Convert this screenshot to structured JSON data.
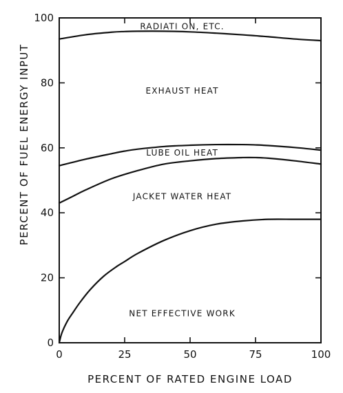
{
  "chart_data": {
    "type": "line",
    "title": "",
    "xlabel": "PERCENT OF RATED ENGINE LOAD",
    "ylabel": "PERCENT OF FUEL ENERGY INPUT",
    "xlim": [
      0,
      100
    ],
    "ylim": [
      0,
      100
    ],
    "xticks": [
      "0",
      "25",
      "50",
      "75",
      "100"
    ],
    "yticks": [
      "0",
      "20",
      "40",
      "60",
      "80",
      "100"
    ],
    "grid": false,
    "legend": "none",
    "series": [
      {
        "x": [
          0,
          1,
          3,
          5,
          8,
          12,
          17,
          22,
          25,
          30,
          40,
          50,
          60,
          70,
          80,
          90,
          100
        ],
        "y": [
          0,
          3,
          6.5,
          9,
          12.5,
          16.5,
          20.5,
          23.5,
          25,
          27.5,
          31.5,
          34.5,
          36.5,
          37.5,
          38,
          38,
          38
        ]
      },
      {
        "x": [
          0,
          5,
          10,
          20,
          30,
          40,
          50,
          60,
          70,
          75,
          80,
          90,
          100
        ],
        "y": [
          43,
          45,
          47,
          50.5,
          53,
          55,
          56,
          56.7,
          57,
          57,
          56.8,
          56,
          55
        ]
      },
      {
        "x": [
          0,
          10,
          20,
          25,
          30,
          40,
          50,
          60,
          70,
          75,
          80,
          90,
          100
        ],
        "y": [
          54.5,
          56.5,
          58.2,
          59,
          59.6,
          60.4,
          60.8,
          61,
          61,
          60.9,
          60.7,
          60.1,
          59.3
        ]
      },
      {
        "x": [
          0,
          10,
          20,
          25,
          30,
          40,
          50,
          60,
          70,
          75,
          80,
          90,
          100
        ],
        "y": [
          93.5,
          94.8,
          95.6,
          95.8,
          95.9,
          95.9,
          95.7,
          95.3,
          94.8,
          94.5,
          94.2,
          93.5,
          93
        ]
      }
    ],
    "region_labels": [
      {
        "text": "RADIATI ON, ETC.",
        "x": 47,
        "y": 97.3
      },
      {
        "text": "EXHAUST HEAT",
        "x": 47,
        "y": 77.5
      },
      {
        "text": "LUBE OIL HEAT",
        "x": 47,
        "y": 58.5
      },
      {
        "text": "JACKET WATER HEAT",
        "x": 47,
        "y": 45
      },
      {
        "text": "NET EFFECTIVE WORK",
        "x": 47,
        "y": 9
      }
    ]
  }
}
